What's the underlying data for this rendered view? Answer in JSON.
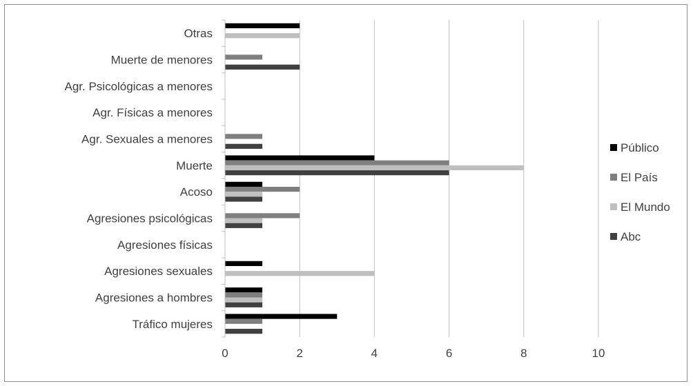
{
  "chart_data": {
    "type": "bar",
    "orientation": "horizontal",
    "categories": [
      "Tráfico mujeres",
      "Agresiones a hombres",
      "Agresiones sexuales",
      "Agresiones físicas",
      "Agresiones psicológicas",
      "Acoso",
      "Muerte",
      "Agr. Sexuales a menores",
      "Agr. Físicas a menores",
      "Agr. Psicológicas a menores",
      "Muerte de menores",
      "Otras"
    ],
    "series": [
      {
        "name": "Público",
        "color": "#000000",
        "values": [
          3,
          1,
          1,
          0,
          0,
          1,
          4,
          0,
          0,
          0,
          0,
          2
        ]
      },
      {
        "name": "El País",
        "color": "#7f7f7f",
        "values": [
          1,
          1,
          0,
          0,
          2,
          2,
          6,
          1,
          0,
          0,
          1,
          0
        ]
      },
      {
        "name": "El Mundo",
        "color": "#bfbfbf",
        "values": [
          0,
          1,
          4,
          0,
          1,
          1,
          8,
          0,
          0,
          0,
          0,
          2
        ]
      },
      {
        "name": "Abc",
        "color": "#404040",
        "values": [
          1,
          1,
          0,
          0,
          1,
          1,
          6,
          1,
          0,
          0,
          2,
          0
        ]
      }
    ],
    "xlim": [
      0,
      10
    ],
    "xticks": [
      0,
      2,
      4,
      6,
      8,
      10
    ],
    "xlabel": "",
    "ylabel": "",
    "title": "",
    "grid": "vertical",
    "legend": "right"
  }
}
